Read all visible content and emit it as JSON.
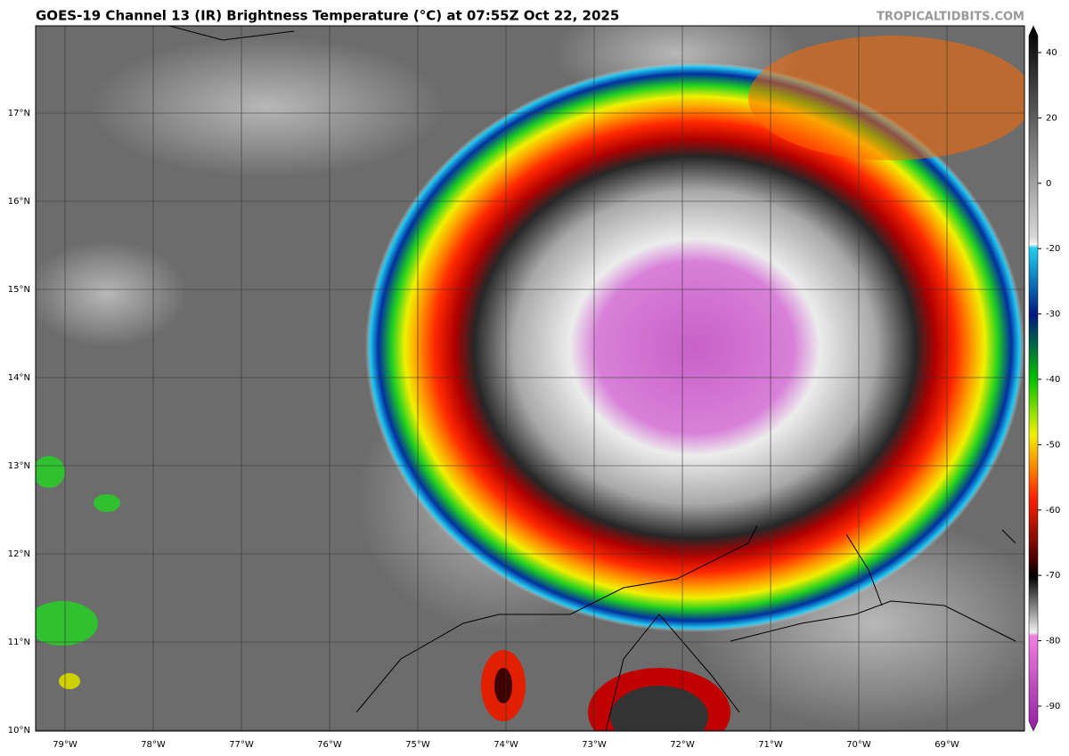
{
  "header": {
    "title": "GOES-19 Channel 13 (IR) Brightness Temperature (°C) at 07:55Z Oct 22, 2025",
    "watermark": "TROPICALTIDBITS.COM"
  },
  "map": {
    "lat_labels": [
      "17°N",
      "16°N",
      "15°N",
      "14°N",
      "13°N",
      "12°N",
      "11°N",
      "10°N"
    ],
    "lon_labels": [
      "79°W",
      "78°W",
      "77°W",
      "76°W",
      "75°W",
      "74°W",
      "73°W",
      "72°W",
      "71°W",
      "70°W",
      "69°W"
    ]
  },
  "colorbar": {
    "labels": [
      40,
      20,
      0,
      -20,
      -30,
      -40,
      -50,
      -60,
      -70,
      -80,
      -90
    ]
  }
}
